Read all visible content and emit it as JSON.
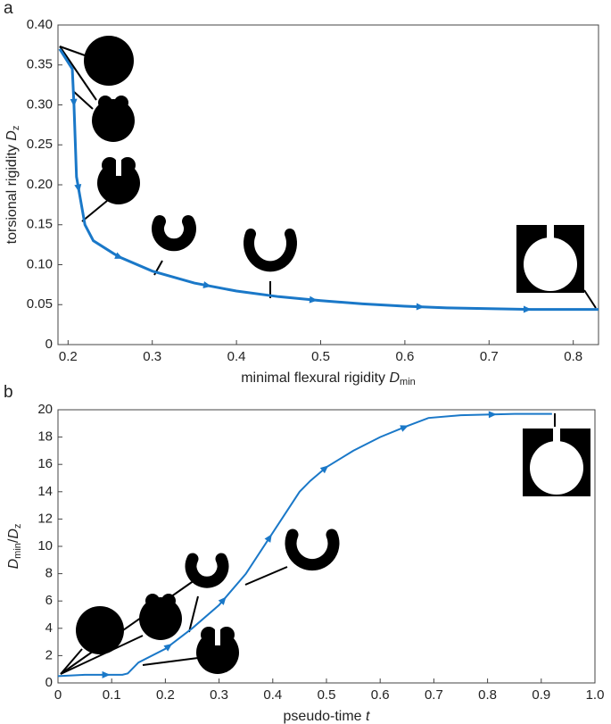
{
  "chart_data": [
    {
      "type": "line",
      "panel": "a",
      "xlabel": {
        "text": "minimal flexural rigidity ",
        "var": "D",
        "sub": "min"
      },
      "ylabel": {
        "text": "torsional rigidity ",
        "var": "D",
        "sub": "z"
      },
      "xlim": [
        0.188,
        0.83
      ],
      "ylim": [
        0,
        0.4
      ],
      "xticks": [
        0.2,
        0.3,
        0.4,
        0.5,
        0.6,
        0.7,
        0.8
      ],
      "yticks": [
        0,
        0.05,
        {
          "value": 0.1,
          "label": "0.10"
        },
        0.15,
        {
          "value": 0.2,
          "label": "0.20"
        },
        0.25,
        {
          "value": 0.3,
          "label": "0.30"
        },
        0.35,
        {
          "value": 0.4,
          "label": "0.40"
        }
      ],
      "grid": false,
      "series": [
        {
          "color": "#1a78c8",
          "x": [
            0.19,
            0.205,
            0.207,
            0.21,
            0.22,
            0.23,
            0.26,
            0.3,
            0.35,
            0.4,
            0.45,
            0.5,
            0.55,
            0.6,
            0.65,
            0.7,
            0.75,
            0.8,
            0.83
          ],
          "values": [
            0.37,
            0.345,
            0.3,
            0.21,
            0.15,
            0.13,
            0.11,
            0.092,
            0.077,
            0.067,
            0.06,
            0.055,
            0.051,
            0.048,
            0.046,
            0.045,
            0.044,
            0.044,
            0.044
          ]
        }
      ]
    },
    {
      "type": "line",
      "panel": "b",
      "xlabel": {
        "text": "pseudo-time ",
        "var": "t",
        "sub": null
      },
      "ylabel": {
        "text": "/",
        "var": "D",
        "sub": "min",
        "var2": "D",
        "sub2": "z"
      },
      "xlim": [
        0,
        1
      ],
      "ylim": [
        0,
        20
      ],
      "xticks": [
        0,
        0.1,
        0.2,
        0.3,
        0.4,
        0.5,
        0.6,
        0.7,
        0.8,
        0.9,
        {
          "value": 1,
          "label": "1.0"
        }
      ],
      "yticks": [
        0,
        2,
        4,
        6,
        8,
        10,
        12,
        14,
        16,
        18,
        20
      ],
      "grid": false,
      "series": [
        {
          "color": "#1a78c8",
          "x": [
            0,
            0.05,
            0.12,
            0.13,
            0.15,
            0.2,
            0.25,
            0.3,
            0.35,
            0.4,
            0.45,
            0.47,
            0.5,
            0.55,
            0.6,
            0.65,
            0.69,
            0.75,
            0.85,
            0.92
          ],
          "values": [
            0.5,
            0.6,
            0.6,
            0.7,
            1.5,
            2.5,
            4,
            5.7,
            8,
            11,
            14,
            14.8,
            15.8,
            17,
            18,
            18.8,
            19.4,
            19.6,
            19.7,
            19.7
          ]
        }
      ]
    }
  ]
}
